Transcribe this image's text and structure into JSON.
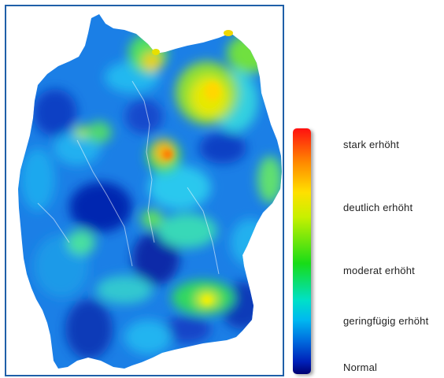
{
  "legend": {
    "items": [
      {
        "label": "stark erhöht",
        "level": 1.0
      },
      {
        "label": "deutlich erhöht",
        "level": 0.75
      },
      {
        "label": "moderat erhöht",
        "level": 0.5
      },
      {
        "label": "geringfügig erhöht",
        "level": 0.25
      },
      {
        "label": "Normal",
        "level": 0.0
      }
    ],
    "scale_colors": [
      "#ff1010",
      "#ff8a00",
      "#ffe000",
      "#c8f000",
      "#18dc18",
      "#00e0c8",
      "#00b8f0",
      "#0070e0",
      "#0020b8",
      "#000070"
    ]
  },
  "map": {
    "frame_color": "#1f5fa8",
    "base_color": "#1b7fe6"
  }
}
